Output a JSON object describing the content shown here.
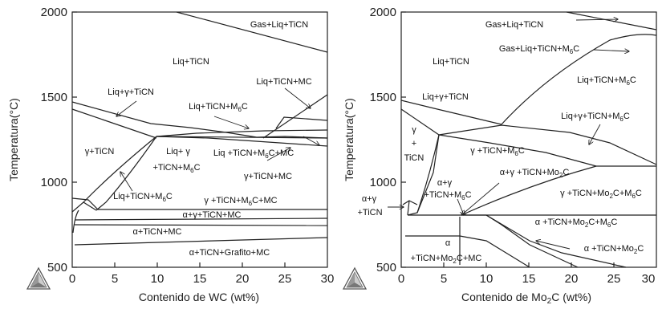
{
  "chart_data": [
    {
      "type": "phase-diagram",
      "xlabel": "Contenido  de WC (wt%)",
      "ylabel": "Temperatura(°C)",
      "xlim": [
        0,
        30
      ],
      "ylim": [
        500,
        2000
      ],
      "x_ticks": [
        "0",
        "5",
        "10",
        "15",
        "20",
        "25",
        "30"
      ],
      "y_ticks": [
        "500",
        "1000",
        "1500",
        "2000"
      ],
      "regions": [
        "Gas+Liq+TiCN",
        "Liq+TiCN",
        "Liq+γ+TiCN",
        "Liq+TiCN+MC",
        "Liq+TiCN+M6C",
        "γ+TiCN",
        "Liq+ γ",
        "+TiCN+M6C",
        "Liq +TiCN+M6C+MC",
        "γ+TiCN+MC",
        "Liq+TiCN+M6C",
        "γ +TiCN+M6C+MC",
        "α+γ+TiCN+MC",
        "α+TiCN+MC",
        "α+TiCN+Grafito+MC"
      ]
    },
    {
      "type": "phase-diagram",
      "xlabel": "Contenido  de Mo2C (wt%)",
      "ylabel": "Temperatura(°C)",
      "xlim": [
        0,
        30
      ],
      "ylim": [
        500,
        2000
      ],
      "x_ticks": [
        "0",
        "5",
        "10",
        "15",
        "20",
        "25",
        "30"
      ],
      "y_ticks": [
        "500",
        "1000",
        "1500",
        "2000"
      ],
      "regions": [
        "Gas+Liq+TiCN",
        "Gas+Liq+TiCN+M6C",
        "Liq+TiCN",
        "Liq+TiCN+M6C",
        "Liq+γ+TiCN",
        "Liq+γ+TiCN+M6C",
        "γ",
        "+",
        "TiCN",
        "γ +TiCN+M6C",
        "α+γ",
        "+TiCN+M6C",
        "α+γ +TiCN+Mo2C",
        "γ +TiCN+Mo2C+M6C",
        "α+γ",
        "+TiCN",
        "α +TiCN+Mo2C+M6C",
        "α",
        "+TiCN+Mo2C+MC",
        "α +TiCN+Mo2C"
      ]
    }
  ]
}
